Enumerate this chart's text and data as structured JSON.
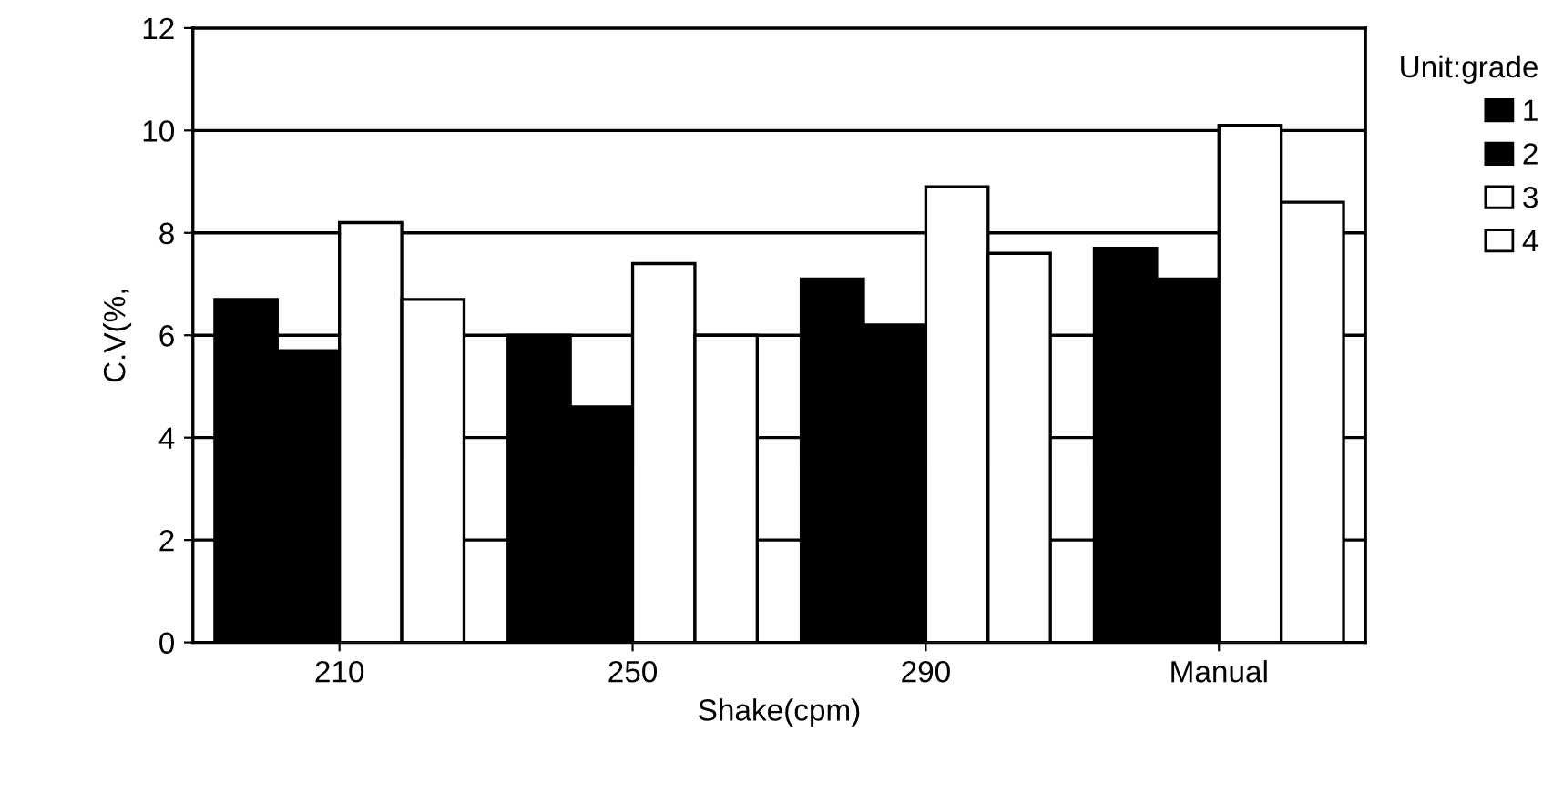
{
  "chart_data": {
    "type": "bar",
    "xlabel": "Shake(cpm)",
    "ylabel": "C.V(%,",
    "legend_title": "Unit:grade",
    "categories": [
      "210",
      "250",
      "290",
      "Manual"
    ],
    "series": [
      {
        "name": "1",
        "color": "#000000",
        "values": [
          6.7,
          6.0,
          7.1,
          7.7
        ]
      },
      {
        "name": "2",
        "color": "#000000",
        "values": [
          5.7,
          4.6,
          6.2,
          7.1
        ]
      },
      {
        "name": "3",
        "color": "#ffffff",
        "values": [
          8.2,
          7.4,
          8.9,
          10.1
        ]
      },
      {
        "name": "4",
        "color": "#ffffff",
        "values": [
          6.7,
          6.0,
          7.6,
          8.6
        ]
      }
    ],
    "ylim": [
      0,
      12
    ],
    "yticks": [
      0,
      2,
      4,
      6,
      8,
      10,
      12
    ],
    "grid": "y",
    "legend": "right"
  }
}
